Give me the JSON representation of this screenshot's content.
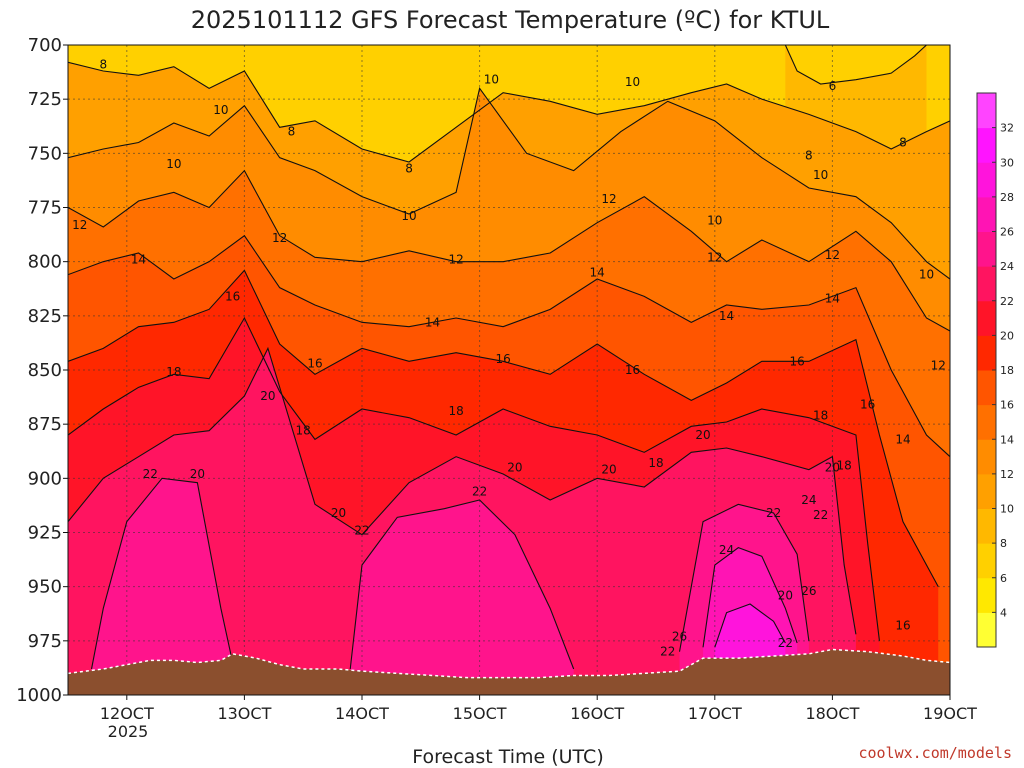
{
  "chart_data": {
    "type": "heatmap",
    "title": "2025101112 GFS Forecast Temperature (ºC) for KTUL",
    "xlabel": "Forecast Time (UTC)",
    "ylabel": "",
    "credit": "coolwx.com/models",
    "x_ticks": [
      "12OCT",
      "13OCT",
      "14OCT",
      "15OCT",
      "16OCT",
      "17OCT",
      "18OCT",
      "19OCT"
    ],
    "x_sub_label": "2025",
    "y_ticks": [
      700,
      725,
      750,
      775,
      800,
      825,
      850,
      875,
      900,
      925,
      950,
      975,
      1000
    ],
    "y_range": [
      700,
      1000
    ],
    "x_range_days": [
      11.5,
      19.0
    ],
    "colorbar": {
      "ticks": [
        4,
        6,
        8,
        10,
        12,
        14,
        16,
        18,
        20,
        22,
        24,
        26,
        28,
        30,
        32
      ],
      "colors": [
        "#ffff33",
        "#ffe800",
        "#ffd000",
        "#ffb800",
        "#ffa000",
        "#ff8c00",
        "#ff7000",
        "#ff5500",
        "#ff2800",
        "#ff1428",
        "#ff1460",
        "#ff148c",
        "#ff14b4",
        "#ff14dc",
        "#ff14ff",
        "#ff44ff"
      ]
    },
    "contour_levels": [
      6,
      8,
      10,
      12,
      14,
      16,
      18,
      20,
      22,
      24,
      26
    ],
    "contours": [
      {
        "level": 6,
        "points": [
          [
            17.6,
            700
          ],
          [
            17.7,
            712
          ],
          [
            17.9,
            718
          ],
          [
            18.2,
            716
          ],
          [
            18.5,
            713
          ],
          [
            18.7,
            705
          ],
          [
            18.8,
            700
          ]
        ]
      },
      {
        "level": 8,
        "points": [
          [
            11.5,
            708
          ],
          [
            11.8,
            712
          ],
          [
            12.1,
            714
          ],
          [
            12.4,
            710
          ],
          [
            12.7,
            720
          ],
          [
            13.0,
            712
          ],
          [
            13.3,
            738
          ],
          [
            13.6,
            735
          ],
          [
            14.0,
            748
          ],
          [
            14.4,
            754
          ],
          [
            14.8,
            738
          ],
          [
            15.2,
            722
          ],
          [
            15.6,
            726
          ],
          [
            16.0,
            732
          ],
          [
            16.4,
            728
          ],
          [
            16.8,
            722
          ],
          [
            17.1,
            718
          ],
          [
            17.4,
            725
          ],
          [
            17.8,
            732
          ],
          [
            18.2,
            740
          ],
          [
            18.5,
            748
          ],
          [
            18.8,
            740
          ],
          [
            19.0,
            735
          ]
        ]
      },
      {
        "level": 10,
        "points": [
          [
            11.5,
            752
          ],
          [
            11.8,
            748
          ],
          [
            12.1,
            745
          ],
          [
            12.4,
            736
          ],
          [
            12.7,
            742
          ],
          [
            13.0,
            728
          ],
          [
            13.3,
            752
          ],
          [
            13.6,
            758
          ],
          [
            14.0,
            770
          ],
          [
            14.4,
            778
          ],
          [
            14.8,
            768
          ],
          [
            15.0,
            720
          ],
          [
            15.4,
            750
          ],
          [
            15.8,
            758
          ],
          [
            16.2,
            740
          ],
          [
            16.6,
            726
          ],
          [
            17.0,
            735
          ],
          [
            17.4,
            752
          ],
          [
            17.8,
            766
          ],
          [
            18.2,
            770
          ],
          [
            18.5,
            782
          ],
          [
            18.8,
            800
          ],
          [
            19.0,
            808
          ]
        ]
      },
      {
        "level": 12,
        "points": [
          [
            11.5,
            775
          ],
          [
            11.8,
            784
          ],
          [
            12.1,
            772
          ],
          [
            12.4,
            768
          ],
          [
            12.7,
            775
          ],
          [
            13.0,
            758
          ],
          [
            13.3,
            788
          ],
          [
            13.6,
            798
          ],
          [
            14.0,
            800
          ],
          [
            14.4,
            795
          ],
          [
            14.8,
            800
          ],
          [
            15.2,
            800
          ],
          [
            15.6,
            796
          ],
          [
            16.0,
            782
          ],
          [
            16.4,
            770
          ],
          [
            16.8,
            786
          ],
          [
            17.1,
            800
          ],
          [
            17.4,
            790
          ],
          [
            17.8,
            800
          ],
          [
            18.2,
            786
          ],
          [
            18.5,
            800
          ],
          [
            18.8,
            826
          ],
          [
            19.0,
            832
          ]
        ]
      },
      {
        "level": 14,
        "points": [
          [
            11.5,
            806
          ],
          [
            11.8,
            800
          ],
          [
            12.1,
            796
          ],
          [
            12.4,
            808
          ],
          [
            12.7,
            800
          ],
          [
            13.0,
            788
          ],
          [
            13.3,
            812
          ],
          [
            13.6,
            820
          ],
          [
            14.0,
            828
          ],
          [
            14.4,
            830
          ],
          [
            14.8,
            826
          ],
          [
            15.2,
            830
          ],
          [
            15.6,
            822
          ],
          [
            16.0,
            808
          ],
          [
            16.4,
            816
          ],
          [
            16.8,
            828
          ],
          [
            17.1,
            820
          ],
          [
            17.4,
            822
          ],
          [
            17.8,
            820
          ],
          [
            18.2,
            812
          ],
          [
            18.5,
            850
          ],
          [
            18.8,
            880
          ],
          [
            19.0,
            890
          ]
        ]
      },
      {
        "level": 16,
        "points": [
          [
            11.5,
            846
          ],
          [
            11.8,
            840
          ],
          [
            12.1,
            830
          ],
          [
            12.4,
            828
          ],
          [
            12.7,
            822
          ],
          [
            13.0,
            804
          ],
          [
            13.3,
            838
          ],
          [
            13.6,
            852
          ],
          [
            14.0,
            840
          ],
          [
            14.4,
            846
          ],
          [
            14.8,
            842
          ],
          [
            15.2,
            846
          ],
          [
            15.6,
            852
          ],
          [
            16.0,
            838
          ],
          [
            16.4,
            852
          ],
          [
            16.8,
            864
          ],
          [
            17.1,
            856
          ],
          [
            17.4,
            846
          ],
          [
            17.8,
            846
          ],
          [
            18.2,
            836
          ],
          [
            18.4,
            880
          ],
          [
            18.6,
            920
          ],
          [
            18.9,
            950
          ]
        ]
      },
      {
        "level": 18,
        "points": [
          [
            11.5,
            880
          ],
          [
            11.8,
            868
          ],
          [
            12.1,
            858
          ],
          [
            12.4,
            852
          ],
          [
            12.7,
            854
          ],
          [
            13.0,
            826
          ],
          [
            13.3,
            860
          ],
          [
            13.6,
            882
          ],
          [
            14.0,
            868
          ],
          [
            14.4,
            872
          ],
          [
            14.8,
            880
          ],
          [
            15.2,
            868
          ],
          [
            15.6,
            876
          ],
          [
            16.0,
            880
          ],
          [
            16.4,
            888
          ],
          [
            16.8,
            876
          ],
          [
            17.1,
            874
          ],
          [
            17.4,
            868
          ],
          [
            17.8,
            872
          ],
          [
            18.2,
            880
          ],
          [
            18.3,
            930
          ],
          [
            18.4,
            975
          ]
        ]
      },
      {
        "level": 20,
        "points": [
          [
            11.5,
            920
          ],
          [
            11.8,
            900
          ],
          [
            12.1,
            890
          ],
          [
            12.4,
            880
          ],
          [
            12.7,
            878
          ],
          [
            13.0,
            862
          ],
          [
            13.2,
            840
          ],
          [
            13.6,
            912
          ],
          [
            14.0,
            926
          ],
          [
            14.4,
            902
          ],
          [
            14.8,
            890
          ],
          [
            15.2,
            898
          ],
          [
            15.6,
            910
          ],
          [
            16.0,
            900
          ],
          [
            16.4,
            904
          ],
          [
            16.8,
            888
          ],
          [
            17.1,
            886
          ],
          [
            17.4,
            890
          ],
          [
            17.8,
            896
          ],
          [
            18.0,
            890
          ],
          [
            18.1,
            940
          ],
          [
            18.2,
            972
          ]
        ]
      },
      {
        "level": 22,
        "points": [
          [
            11.7,
            988
          ],
          [
            11.8,
            960
          ],
          [
            12.0,
            920
          ],
          [
            12.3,
            900
          ],
          [
            12.6,
            902
          ],
          [
            12.8,
            960
          ],
          [
            12.9,
            985
          ]
        ]
      },
      {
        "level": 22,
        "points": [
          [
            13.9,
            988
          ],
          [
            14.0,
            940
          ],
          [
            14.3,
            918
          ],
          [
            14.7,
            914
          ],
          [
            15.0,
            910
          ],
          [
            15.3,
            926
          ],
          [
            15.6,
            960
          ],
          [
            15.8,
            988
          ]
        ]
      },
      {
        "level": 22,
        "points": [
          [
            16.7,
            980
          ],
          [
            16.9,
            920
          ],
          [
            17.2,
            912
          ],
          [
            17.5,
            916
          ],
          [
            17.7,
            935
          ],
          [
            17.8,
            975
          ]
        ]
      },
      {
        "level": 24,
        "points": [
          [
            16.9,
            978
          ],
          [
            17.0,
            940
          ],
          [
            17.2,
            932
          ],
          [
            17.4,
            936
          ],
          [
            17.6,
            960
          ],
          [
            17.7,
            976
          ]
        ]
      },
      {
        "level": 26,
        "points": [
          [
            17.0,
            978
          ],
          [
            17.1,
            962
          ],
          [
            17.3,
            958
          ],
          [
            17.5,
            966
          ],
          [
            17.6,
            976
          ]
        ]
      }
    ],
    "contour_labels": [
      {
        "level": 8,
        "x": 11.8,
        "p": 709
      },
      {
        "level": 8,
        "x": 13.4,
        "p": 740
      },
      {
        "level": 8,
        "x": 14.4,
        "p": 757
      },
      {
        "level": 8,
        "x": 18.6,
        "p": 745
      },
      {
        "level": 6,
        "x": 18.0,
        "p": 719
      },
      {
        "level": 10,
        "x": 12.4,
        "p": 755
      },
      {
        "level": 10,
        "x": 12.8,
        "p": 730
      },
      {
        "level": 10,
        "x": 15.1,
        "p": 716
      },
      {
        "level": 10,
        "x": 16.3,
        "p": 717
      },
      {
        "level": 10,
        "x": 14.4,
        "p": 779
      },
      {
        "level": 10,
        "x": 17.9,
        "p": 760
      },
      {
        "level": 10,
        "x": 17.0,
        "p": 781
      },
      {
        "level": 10,
        "x": 18.8,
        "p": 806
      },
      {
        "level": 8,
        "x": 17.8,
        "p": 751
      },
      {
        "level": 12,
        "x": 11.6,
        "p": 783
      },
      {
        "level": 12,
        "x": 13.3,
        "p": 789
      },
      {
        "level": 12,
        "x": 14.8,
        "p": 799
      },
      {
        "level": 12,
        "x": 16.1,
        "p": 771
      },
      {
        "level": 12,
        "x": 17.0,
        "p": 798
      },
      {
        "level": 12,
        "x": 18.0,
        "p": 797
      },
      {
        "level": 14,
        "x": 12.1,
        "p": 799
      },
      {
        "level": 14,
        "x": 14.6,
        "p": 828
      },
      {
        "level": 14,
        "x": 16.0,
        "p": 805
      },
      {
        "level": 14,
        "x": 17.1,
        "p": 825
      },
      {
        "level": 14,
        "x": 18.0,
        "p": 817
      },
      {
        "level": 14,
        "x": 18.6,
        "p": 882
      },
      {
        "level": 16,
        "x": 12.9,
        "p": 816
      },
      {
        "level": 16,
        "x": 13.6,
        "p": 847
      },
      {
        "level": 16,
        "x": 15.2,
        "p": 845
      },
      {
        "level": 16,
        "x": 16.3,
        "p": 850
      },
      {
        "level": 16,
        "x": 17.7,
        "p": 846
      },
      {
        "level": 16,
        "x": 18.3,
        "p": 866
      },
      {
        "level": 16,
        "x": 18.6,
        "p": 968
      },
      {
        "level": 18,
        "x": 12.4,
        "p": 851
      },
      {
        "level": 18,
        "x": 13.5,
        "p": 878
      },
      {
        "level": 18,
        "x": 14.8,
        "p": 869
      },
      {
        "level": 18,
        "x": 16.5,
        "p": 893
      },
      {
        "level": 18,
        "x": 17.9,
        "p": 871
      },
      {
        "level": 18,
        "x": 18.1,
        "p": 894
      },
      {
        "level": 12,
        "x": 18.9,
        "p": 848
      },
      {
        "level": 20,
        "x": 12.6,
        "p": 898
      },
      {
        "level": 20,
        "x": 13.2,
        "p": 862
      },
      {
        "level": 20,
        "x": 13.8,
        "p": 916
      },
      {
        "level": 20,
        "x": 15.3,
        "p": 895
      },
      {
        "level": 20,
        "x": 16.1,
        "p": 896
      },
      {
        "level": 20,
        "x": 16.9,
        "p": 880
      },
      {
        "level": 20,
        "x": 18.0,
        "p": 895
      },
      {
        "level": 20,
        "x": 17.6,
        "p": 954
      },
      {
        "level": 22,
        "x": 12.2,
        "p": 898
      },
      {
        "level": 22,
        "x": 14.0,
        "p": 924
      },
      {
        "level": 22,
        "x": 15.0,
        "p": 906
      },
      {
        "level": 22,
        "x": 17.5,
        "p": 916
      },
      {
        "level": 22,
        "x": 17.9,
        "p": 917
      },
      {
        "level": 22,
        "x": 16.6,
        "p": 980
      },
      {
        "level": 22,
        "x": 17.6,
        "p": 976
      },
      {
        "level": 24,
        "x": 17.1,
        "p": 933
      },
      {
        "level": 24,
        "x": 17.8,
        "p": 910
      },
      {
        "level": 26,
        "x": 16.7,
        "p": 973
      },
      {
        "level": 26,
        "x": 17.8,
        "p": 952
      }
    ],
    "terrain_pressure": [
      [
        11.5,
        990
      ],
      [
        11.8,
        988
      ],
      [
        12.0,
        986
      ],
      [
        12.2,
        984
      ],
      [
        12.4,
        984
      ],
      [
        12.6,
        985
      ],
      [
        12.8,
        984
      ],
      [
        12.9,
        981
      ],
      [
        13.1,
        983
      ],
      [
        13.3,
        986
      ],
      [
        13.5,
        988
      ],
      [
        13.8,
        988
      ],
      [
        14.0,
        989
      ],
      [
        14.3,
        990
      ],
      [
        14.6,
        991
      ],
      [
        14.9,
        992
      ],
      [
        15.2,
        992
      ],
      [
        15.5,
        992
      ],
      [
        15.8,
        991
      ],
      [
        16.1,
        991
      ],
      [
        16.4,
        990
      ],
      [
        16.7,
        989
      ],
      [
        16.9,
        983
      ],
      [
        17.2,
        983
      ],
      [
        17.5,
        982
      ],
      [
        17.8,
        981
      ],
      [
        18.0,
        979
      ],
      [
        18.3,
        980
      ],
      [
        18.6,
        982
      ],
      [
        18.8,
        984
      ],
      [
        19.0,
        985
      ]
    ],
    "terrain_color": "#8b4f2e",
    "grid": true,
    "legend": "right"
  }
}
